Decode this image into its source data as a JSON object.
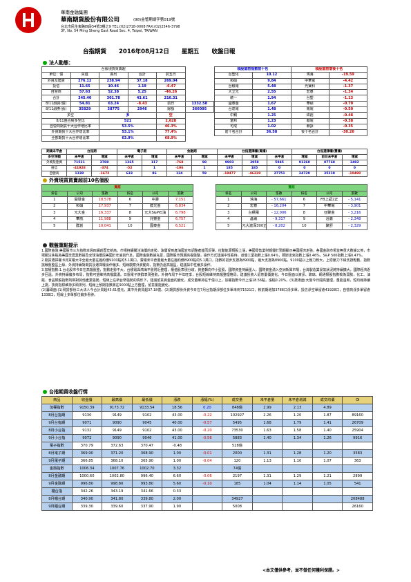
{
  "company": {
    "group": "華南金融集團",
    "name": "華南期貨股份有限公司",
    "license": "(98)金管期總字第019號",
    "address_cn": "台北市民生東路四段54號3樓之9 TEL:(02)2718-0008 FAX:(02)2546-3798",
    "address_en": "3F, No. 54 Ming Sheng East Road Sec. 4, Taipei, TAIWAN"
  },
  "report": {
    "title": "台指期貨",
    "date": "2016年08月12日",
    "weekday": "星期五",
    "type": "收盤日報"
  },
  "section1": {
    "title": "法人動態："
  },
  "spot": {
    "caption": "台股現貨買賣超",
    "headers": [
      "單位：億",
      "買進",
      "賣出",
      "合計",
      "前五日"
    ],
    "rows": [
      [
        "外資及陸資",
        "276.12",
        "238.94",
        "37.18",
        "269.04"
      ],
      [
        "投信",
        "11.65",
        "10.46",
        "1.19",
        "-6.47"
      ],
      [
        "自營商",
        "57.63",
        "52.38",
        "5.25",
        "-46.26"
      ],
      [
        "合計",
        "345.40",
        "301.78",
        "43.61",
        "216.31"
      ]
    ],
    "extra": [
      [
        "8/11融資(億)",
        "54.81",
        "63.24",
        "-8.43",
        "前日",
        "1332.58"
      ],
      [
        "8/11融券(張)",
        "35829",
        "38775",
        "2946",
        "餘額",
        "366095"
      ],
      [
        "多空",
        "口",
        "",
        "多",
        "",
        "空"
      ],
      [
        "8/11整合對多空比",
        "",
        "",
        "521",
        "",
        "2,628"
      ],
      [
        "自營商期貨十大台作增比率",
        "",
        "",
        "53.5%",
        "",
        "46.3%"
      ],
      [
        "外資期貨十大台作增比率",
        "",
        "",
        "53.1%",
        "",
        "77.4%"
      ],
      [
        "全部期貨十大台作增比率",
        "",
        "",
        "63.9%",
        "",
        "68.9%"
      ]
    ]
  },
  "lead_top": {
    "left_title": "領股當前指數前十名",
    "right_title": "領股當前落後十名",
    "rows": [
      [
        "台塑化",
        "10.12",
        "鴻海",
        "-19.59"
      ],
      [
        "和碩",
        "9.84",
        "中華電",
        "-4.42"
      ],
      [
        "台積電",
        "5.48",
        "光寶科",
        "-1.37"
      ],
      [
        "大立光",
        "2.55",
        "宏碁",
        "-1.34"
      ],
      [
        "統一",
        "1.94",
        "台塑",
        "-1.13"
      ],
      [
        "國泰金",
        "1.67",
        "華碩",
        "-0.70"
      ],
      [
        "台達電",
        "1.48",
        "南電",
        "-0.50"
      ],
      [
        "中鋼",
        "1.25",
        "緯創",
        "-0.48"
      ],
      [
        "富邦",
        "1.23",
        "聯電",
        "-0.38"
      ],
      [
        "可成",
        "1.02",
        "聯詠",
        "-0.35"
      ],
      [
        "前十名合計",
        "36.58",
        "後十名合計",
        "-30.26"
      ]
    ]
  },
  "futures": {
    "groups": [
      "期貨未平倉",
      "台指期",
      "電子期",
      "金融期",
      "台指選擇權(買權)",
      "台指選擇權(賣權)"
    ],
    "sub": [
      "多空淨額",
      "未平倉",
      "增減",
      "未平倉",
      "增減",
      "未平倉",
      "增減",
      "未平倉",
      "增減",
      "未平倉",
      "增減",
      "前日未平倉",
      "增減"
    ],
    "rows": [
      [
        "外資及陸資",
        "71521",
        "3788",
        "1365",
        "117",
        "-768",
        "98",
        "9903",
        "3958",
        "5945",
        "91260",
        "87768",
        "3492"
      ],
      [
        "投信",
        "-41928",
        "-374",
        "-52",
        "1",
        "-106",
        "1",
        "185",
        "185",
        "0",
        "0",
        "0",
        "0"
      ],
      [
        "自營商",
        "1338",
        "-1672",
        "633",
        "86",
        "124",
        "59",
        "-18477",
        "-46228",
        "27751",
        "24720",
        "35218",
        "-10498"
      ]
    ]
  },
  "section2": {
    "title": "外資現貨買賣超前10名個股"
  },
  "buy_list": {
    "title": "買超",
    "headers": [
      "排名",
      "公司",
      "張數",
      "排名",
      "公司",
      "張數"
    ],
    "rows": [
      [
        "1",
        "開發金",
        "18,578",
        "6",
        "中壽",
        "7,151"
      ],
      [
        "2",
        "和碩",
        "17,937",
        "7",
        "群光金",
        "6,834"
      ],
      [
        "3",
        "元大金",
        "16,337",
        "8",
        "元大S&P石油",
        "6,798"
      ],
      [
        "4",
        "華航",
        "11,988",
        "9",
        "兆豐金",
        "6,757"
      ],
      [
        "5",
        "群創",
        "10,041",
        "10",
        "國泰金",
        "6,521"
      ]
    ]
  },
  "sell_list": {
    "title": "賣超",
    "headers": [
      "排名",
      "公司",
      "張數",
      "排名",
      "公司",
      "張數"
    ],
    "rows": [
      [
        "1",
        "鴻海",
        "- 57,661",
        "6",
        "FB上証2正",
        "- 5,141"
      ],
      [
        "2",
        "宏碁",
        "- 16,204",
        "7",
        "中華電",
        "- 3,901"
      ],
      [
        "3",
        "台積電",
        "- 12,006",
        "8",
        "亞聚金",
        "- 3,216"
      ],
      [
        "4",
        "晶電",
        "- 9,317",
        "9",
        "治鑫",
        "- 2,348"
      ],
      [
        "5",
        "元大滬深300正2",
        "- 8,202",
        "10",
        "聚舒",
        "- 2,329"
      ]
    ]
  },
  "section3": {
    "title": "觀盤重點提示"
  },
  "notes": [
    "1.國際金融:美國股市三大指數本週四續創歷史新高。市場持續關注油價的走勢，油價受到產油國宣布調整產能而反彈，拉動能源類股上漲，美國零售業財報優於預期顯示美國經濟走強，各國金融市場並無重大數據公佈，市場關注焦點為美國非農業數據及全球油價與美國於年底前升息，國際金融數據充足，國際股市預期高檔盤整，操作方式建議中性看待，道瓊工業指數上漲0.64%，那斯達克指數上漲0.46%，S&P 500指數上漲0.47%。",
    "2.期貨選擇權:8月買權大中全最大量在履約價9100點的5.1萬口，賣權未平倉量最大量在履約價8900點的5.1萬口，指數的初步支撐為8900點，最大支撐為8900點，9100點以上壓力較大，上原壓力下緣支撐鬆動，指數挑戰盤整區上緣，外資持續對期貨及選擇權操作偏多，短線觀察外資動向，指數仍處高檔區，建議採中性偏多操作。",
    "3.加權指數:1.台北股市今日在高檔盤整，指數走勢不大，台積電與鴻海平盤附近整理，權值股表現分歧，資金轉向中小型股，國際資金持續匯入，國際資金湧入亞洲新興市場，台灣製造業景氣狀況將持續擴大，國際經濟逐步回溫，外資持續偏多布局，指數可望維持高檔震盪。日盤電子族群表現強勢，外資布局下半年旺季，台股短線維持高檔整理格局，建議投資人留意量價變化。今日盤面以資訊、玻璃、網通類股指數較為弱勢，化工、油瓶、食品類股指數則相對其他產業強勢，短線上在新台幣強勢的情形下，建議留意資金面的變化，成交量維持在千億以上，加權指數今日上漲18.56點，漲幅0.20%。(3)技術面:大盤今日開高整理，量能溫和，短均線持續上揚，技術指標維持多頭排列，短線上預期指數將在9000點上方整理，留意量能變化。",
    "(2)籌碼面:(1)現貨部份三大法人今合計買超43.61億元，其中外資買超37.18億。(2)期貨部份外資今日在7月台指期淨部位多單未到71521口，較前期增加3788口淨多單，投信淨空單留倉41928口，自營商淨多單留倉1338口，短線上多單部位偏多看待。"
  ],
  "section4": {
    "title": "台指期貨收盤行情"
  },
  "market": {
    "headers": [
      "商品",
      "收盤價",
      "最高價",
      "最低價",
      "漲跌",
      "漲幅(%)",
      "成交量",
      "未平倉量",
      "未平倉增減",
      "成交均價",
      "OI"
    ],
    "rows": [
      [
        "加權指數",
        "9150.39",
        "9173.72",
        "9133.54",
        "18.56",
        "0.20",
        "848億",
        "2.99",
        "2.13",
        "4.89",
        ""
      ],
      [
        "8月台指期",
        "9130",
        "9149",
        "9102",
        "43.00",
        "-0.22",
        "102927",
        "2.26",
        "1.20",
        "1.87",
        "89160"
      ],
      [
        "9月台指期",
        "9071",
        "9090",
        "9045",
        "40.00",
        "-0.57",
        "5495",
        "1.68",
        "1.79",
        "1.41",
        "26709"
      ],
      [
        "8月小台指",
        "9132",
        "9149",
        "9102",
        "43.00",
        "-0.20",
        "73530",
        "1.63",
        "1.58",
        "1.40",
        "25904"
      ],
      [
        "9月小台指",
        "9072",
        "9090",
        "9046",
        "41.00",
        "-0.56",
        "5883",
        "1.40",
        "1.34",
        "1.26",
        "9916"
      ],
      [
        "電子指數",
        "370.79",
        "372.63",
        "370.47",
        "-0.48",
        "",
        "528億",
        "",
        "",
        "",
        ""
      ],
      [
        "8月電子期",
        "369.90",
        "371.20",
        "368.90",
        "1.00",
        "-0.01",
        "2000",
        "1.31",
        "1.28",
        "1.20",
        "3583"
      ],
      [
        "9月電子期",
        "366.85",
        "368.10",
        "365.90",
        "1.00",
        "-0.04",
        "120",
        "1.13",
        "1.10",
        "1.07",
        "363"
      ],
      [
        "金融指數",
        "1006.34",
        "1007.76",
        "1002.70",
        "3.32",
        "",
        "74億",
        "",
        "",
        "",
        ""
      ],
      [
        "8月金融期",
        "1000.60",
        "1002.80",
        "996.40",
        "6.60",
        "-0.06",
        "2197",
        "1.31",
        "1.29",
        "1.21",
        "2899"
      ],
      [
        "9月金融期",
        "996.80",
        "998.80",
        "993.80",
        "5.60",
        "-0.10",
        "185",
        "1.04",
        "1.14",
        "1.05",
        "541"
      ],
      [
        "櫃台指",
        "342.26",
        "343.19",
        "341.66",
        "0.33",
        "",
        "",
        "",
        "",
        "",
        ""
      ],
      [
        "8月櫃台期",
        "340.90",
        "341.80",
        "339.80",
        "2.00",
        "",
        "34927",
        "",
        "",
        "",
        "208488"
      ],
      [
        "9月櫃台期",
        "339.30",
        "339.60",
        "337.90",
        "1.90",
        "",
        "5008",
        "",
        "",
        "",
        "26160"
      ]
    ]
  },
  "footer": "<本文僅供參考，並不做任何獲利保證。>",
  "colors": {
    "brand": "#d40000",
    "green": "#7fd47f",
    "yellow": "#f4e783",
    "blue": "#b7d0ee"
  }
}
